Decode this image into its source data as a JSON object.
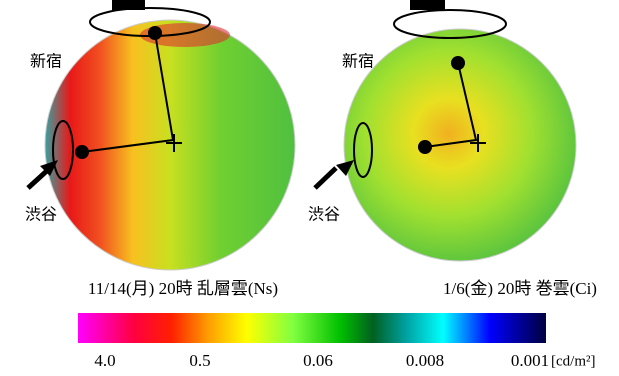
{
  "left_panel": {
    "label_top": "新宿",
    "label_side": "渋谷",
    "caption": "11/14(月) 20時 乱層雲(Ns)"
  },
  "right_panel": {
    "label_top": "新宿",
    "label_side": "渋谷",
    "caption": "1/6(金) 20時 巻雲(Ci)"
  },
  "colorbar": {
    "labels": [
      "4.0",
      "0.5",
      "0.06",
      "0.008",
      "0.001"
    ],
    "unit": "[cd/m²]"
  }
}
